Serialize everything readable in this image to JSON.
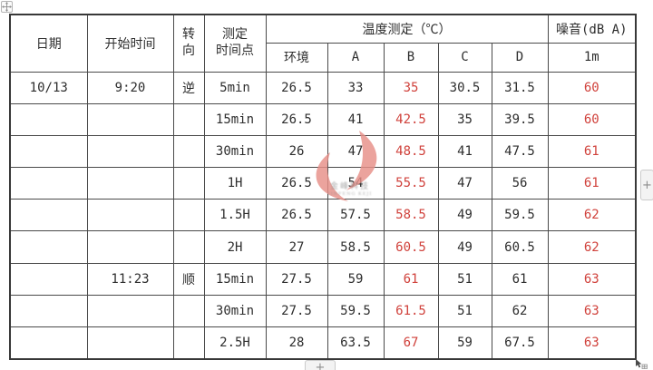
{
  "window": {
    "background": "#ffffff"
  },
  "colors": {
    "grid_line": "#4a4a4a",
    "outer_border": "#383838",
    "text": "#2d2d2d",
    "alert_red": "#d0413b",
    "button_bg": "#f3f3f3",
    "button_border": "#cbcbcb",
    "watermark_pink": "#e78f88",
    "watermark_gray": "#8f8f8f"
  },
  "table": {
    "header": {
      "date": "日期",
      "start_time": "开始时间",
      "direction": "转\n向",
      "time_point": "测定\n时间点",
      "temp_group": "温度测定（℃）",
      "env": "环境",
      "a": "A",
      "b": "B",
      "c": "C",
      "d": "D",
      "noise_group": "噪音(dB A)",
      "noise_sub": "1m"
    },
    "red_columns": [
      6,
      9
    ],
    "rows": [
      [
        "10/13",
        "9:20",
        "逆",
        "5min",
        "26.5",
        "33",
        "35",
        "30.5",
        "31.5",
        "60"
      ],
      [
        "",
        "",
        "",
        "15min",
        "26.5",
        "41",
        "42.5",
        "35",
        "39.5",
        "60"
      ],
      [
        "",
        "",
        "",
        "30min",
        "26",
        "47",
        "48.5",
        "41",
        "47.5",
        "61"
      ],
      [
        "",
        "",
        "",
        "1H",
        "26.5",
        "54",
        "55.5",
        "47",
        "56",
        "61"
      ],
      [
        "",
        "",
        "",
        "1.5H",
        "26.5",
        "57.5",
        "58.5",
        "49",
        "59.5",
        "62"
      ],
      [
        "",
        "",
        "",
        "2H",
        "27",
        "58.5",
        "60.5",
        "49",
        "60.5",
        "62"
      ],
      [
        "",
        "11:23",
        "顺",
        "15min",
        "27.5",
        "59",
        "61",
        "51",
        "61",
        "63"
      ],
      [
        "",
        "",
        "",
        "30min",
        "27.5",
        "59.5",
        "61.5",
        "51",
        "62",
        "63"
      ],
      [
        "",
        "",
        "",
        "2.5H",
        "28",
        "63.5",
        "67",
        "59",
        "67.5",
        "63"
      ]
    ]
  },
  "watermark": {
    "line1": "金峰科技",
    "line2": "JINFENG KEJI"
  },
  "controls": {
    "add_row_label": "+",
    "add_col_label": "+"
  },
  "icons": {
    "move_handle": "move-icon",
    "add": "plus",
    "pointer": "mouse-cursor"
  }
}
